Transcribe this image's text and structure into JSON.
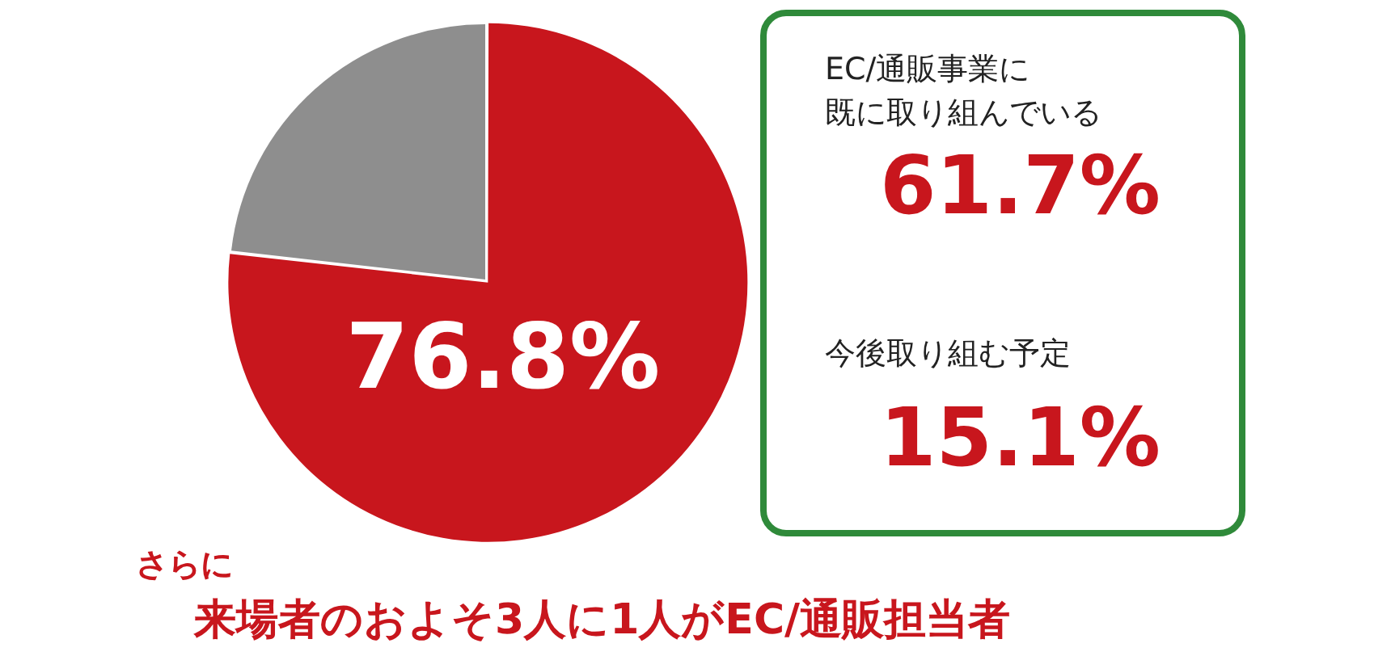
{
  "chart_data": {
    "type": "pie",
    "categories": [
      null,
      null
    ],
    "values": [
      76.8,
      23.2
    ],
    "colors": [
      "#c8161d",
      "#8e8e8e"
    ],
    "value_labels": [
      "76.8%",
      null
    ],
    "annotations": [
      "EC/通販事業に",
      "既に取り組んでいる",
      "61.7%",
      "今後取り組む予定",
      "15.1%",
      "さらに",
      "来場者のおよそ3人に1人がEC/通販担当者"
    ]
  }
}
